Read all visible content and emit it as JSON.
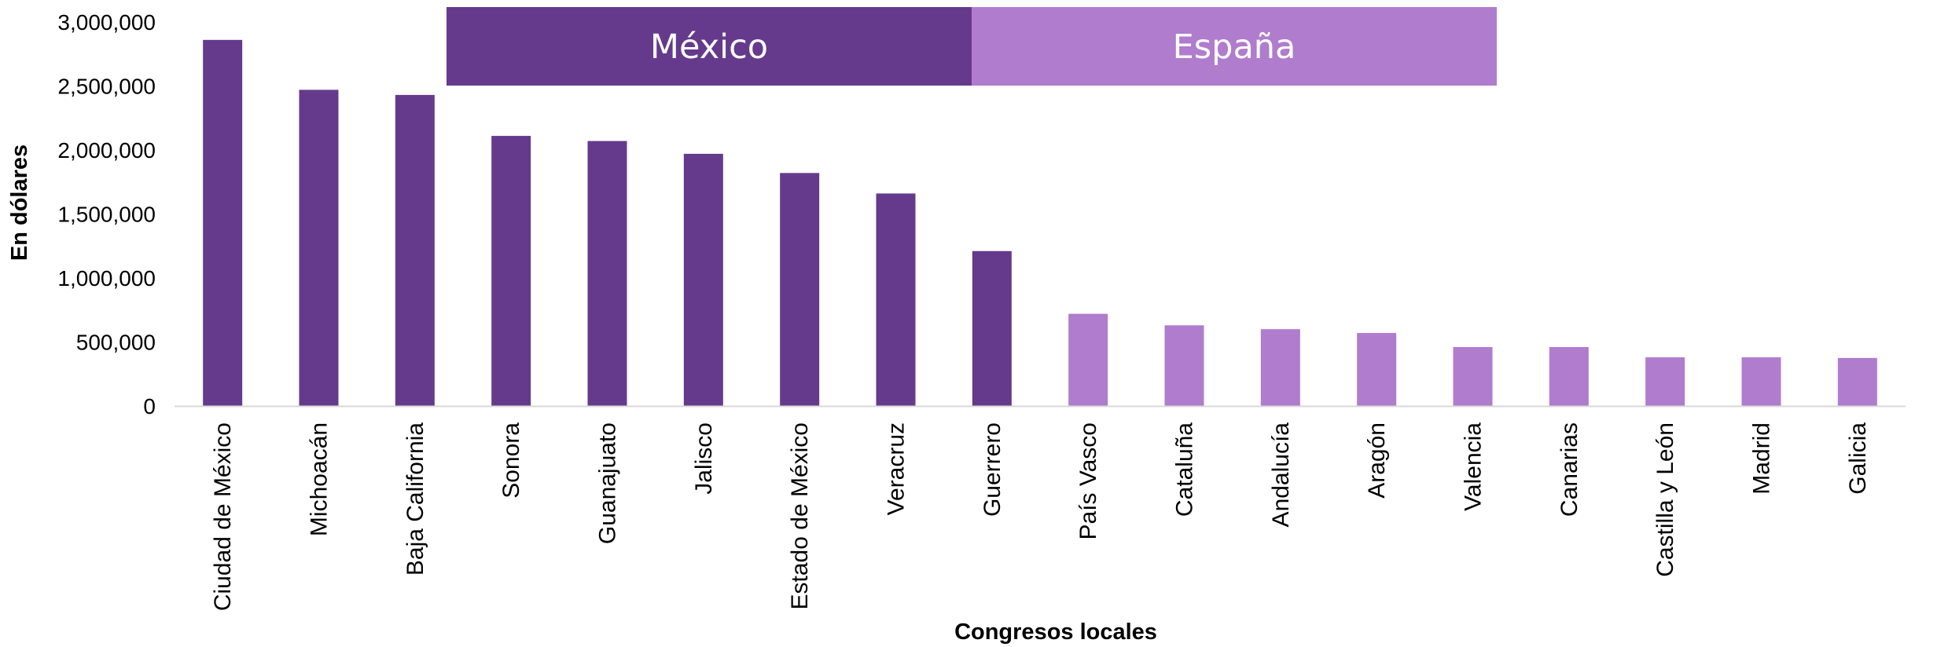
{
  "chart_data": {
    "type": "bar",
    "title": "",
    "xlabel": "Congresos locales",
    "ylabel": "En dólares",
    "ylim": [
      0,
      3000000
    ],
    "yticks": [
      0,
      500000,
      1000000,
      1500000,
      2000000,
      2500000,
      3000000
    ],
    "ytick_labels": [
      "0",
      "500,000",
      "1,000,000",
      "1,500,000",
      "2,000,000",
      "2,500,000",
      "3,000,000"
    ],
    "grid": false,
    "legend": "none",
    "categories": [
      "Ciudad de México",
      "Michoacán",
      "Baja California",
      "Sonora",
      "Guanajuato",
      "Jalisco",
      "Estado de México",
      "Veracruz",
      "Guerrero",
      "País Vasco",
      "Cataluña",
      "Andalucía",
      "Aragón",
      "Valencia",
      "Canarias",
      "Castilla y León",
      "Madrid",
      "Galicia"
    ],
    "values": [
      2860000,
      2470000,
      2430000,
      2110000,
      2070000,
      1970000,
      1820000,
      1660000,
      1210000,
      720000,
      630000,
      600000,
      570000,
      460000,
      460000,
      380000,
      380000,
      375000
    ],
    "groups": [
      {
        "label": "México",
        "color": "#653a8c",
        "start": 0,
        "end": 8
      },
      {
        "label": "España",
        "color": "#b07ccd",
        "start": 9,
        "end": 17
      }
    ],
    "axis_color": "#d9d9d9"
  }
}
